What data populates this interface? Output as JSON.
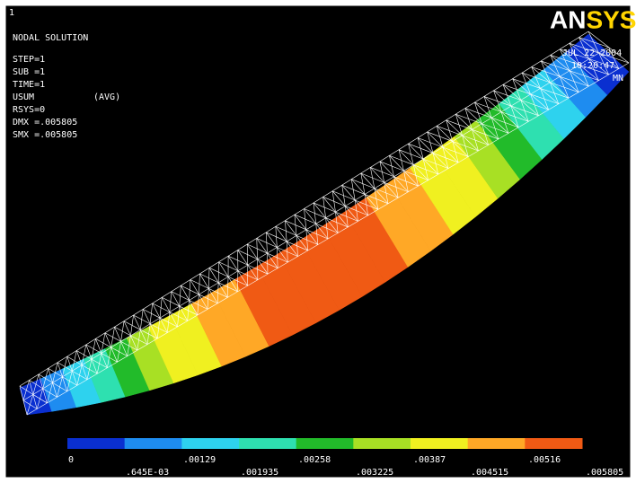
{
  "window_number": "1",
  "info": [
    "NODAL SOLUTION",
    "STEP=1",
    "SUB =1",
    "TIME=1",
    "USUM",
    "(AVG)",
    "RSYS=0",
    "DMX =.005805",
    "SMX =.005805"
  ],
  "logo": "ANSYS",
  "date": "JUL 22 2004",
  "time": "10:20:47",
  "mn_marker": "MN",
  "legend": {
    "colors": [
      "#0a2fd0",
      "#1e8cf0",
      "#2ed2ee",
      "#2ee0b0",
      "#22bb2a",
      "#a8e024",
      "#f0f020",
      "#ffa826",
      "#f05a14"
    ],
    "labels": [
      "0",
      ".645E-03",
      ".00129",
      ".001935",
      ".00258",
      ".003225",
      ".00387",
      ".004515",
      ".00516",
      ".005805"
    ]
  }
}
